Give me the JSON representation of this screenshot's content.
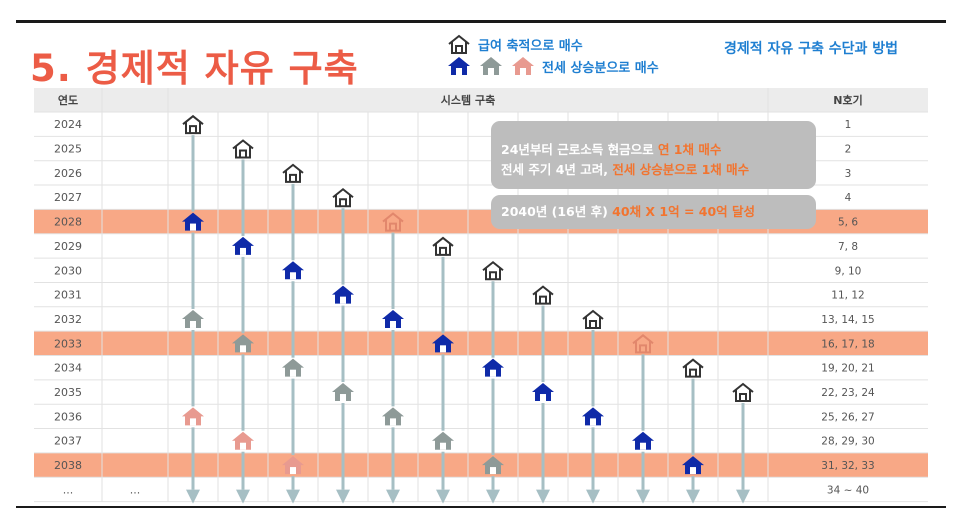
{
  "title": "5. 경제적 자유 구축",
  "top_right_link": "경제적 자유 구축 수단과 방법",
  "legend": {
    "line1": "급여 축적으로 매수",
    "line2": "전세 상승분으로 매수"
  },
  "table": {
    "headers": {
      "year": "연도",
      "blank": "",
      "system": "시스템 구축",
      "n": "N호기"
    },
    "rows": [
      {
        "year": "2024",
        "n": "1",
        "highlight": false
      },
      {
        "year": "2025",
        "n": "2",
        "highlight": false
      },
      {
        "year": "2026",
        "n": "3",
        "highlight": false
      },
      {
        "year": "2027",
        "n": "4",
        "highlight": false
      },
      {
        "year": "2028",
        "n": "5, 6",
        "highlight": true
      },
      {
        "year": "2029",
        "n": "7, 8",
        "highlight": false
      },
      {
        "year": "2030",
        "n": "9, 10",
        "highlight": false
      },
      {
        "year": "2031",
        "n": "11, 12",
        "highlight": false
      },
      {
        "year": "2032",
        "n": "13, 14, 15",
        "highlight": false
      },
      {
        "year": "2033",
        "n": "16, 17, 18",
        "highlight": true
      },
      {
        "year": "2034",
        "n": "19, 20, 21",
        "highlight": false
      },
      {
        "year": "2035",
        "n": "22, 23, 24",
        "highlight": false
      },
      {
        "year": "2036",
        "n": "25, 26, 27",
        "highlight": false
      },
      {
        "year": "2037",
        "n": "28, 29, 30",
        "highlight": false
      },
      {
        "year": "2038",
        "n": "31, 32, 33",
        "highlight": true
      },
      {
        "year": "...",
        "c2": "...",
        "n": "34 ~ 40",
        "highlight": false
      }
    ],
    "houses": [
      {
        "col": 0,
        "row": 0,
        "type": "outline"
      },
      {
        "col": 1,
        "row": 1,
        "type": "outline"
      },
      {
        "col": 2,
        "row": 2,
        "type": "outline"
      },
      {
        "col": 3,
        "row": 3,
        "type": "outline"
      },
      {
        "col": 0,
        "row": 4,
        "type": "blue"
      },
      {
        "col": 4,
        "row": 4,
        "type": "salmon-outline"
      },
      {
        "col": 1,
        "row": 5,
        "type": "blue"
      },
      {
        "col": 5,
        "row": 5,
        "type": "outline"
      },
      {
        "col": 2,
        "row": 6,
        "type": "blue"
      },
      {
        "col": 6,
        "row": 6,
        "type": "outline"
      },
      {
        "col": 3,
        "row": 7,
        "type": "blue"
      },
      {
        "col": 7,
        "row": 7,
        "type": "outline"
      },
      {
        "col": 0,
        "row": 8,
        "type": "gray"
      },
      {
        "col": 4,
        "row": 8,
        "type": "blue"
      },
      {
        "col": 8,
        "row": 8,
        "type": "outline"
      },
      {
        "col": 1,
        "row": 9,
        "type": "gray"
      },
      {
        "col": 5,
        "row": 9,
        "type": "blue"
      },
      {
        "col": 9,
        "row": 9,
        "type": "salmon-outline"
      },
      {
        "col": 2,
        "row": 10,
        "type": "gray"
      },
      {
        "col": 6,
        "row": 10,
        "type": "blue"
      },
      {
        "col": 10,
        "row": 10,
        "type": "outline"
      },
      {
        "col": 3,
        "row": 11,
        "type": "gray"
      },
      {
        "col": 7,
        "row": 11,
        "type": "blue"
      },
      {
        "col": 11,
        "row": 11,
        "type": "outline"
      },
      {
        "col": 0,
        "row": 12,
        "type": "pink"
      },
      {
        "col": 4,
        "row": 12,
        "type": "gray"
      },
      {
        "col": 8,
        "row": 12,
        "type": "blue"
      },
      {
        "col": 1,
        "row": 13,
        "type": "pink"
      },
      {
        "col": 5,
        "row": 13,
        "type": "gray"
      },
      {
        "col": 9,
        "row": 13,
        "type": "blue"
      },
      {
        "col": 2,
        "row": 14,
        "type": "pink"
      },
      {
        "col": 6,
        "row": 14,
        "type": "gray"
      },
      {
        "col": 10,
        "row": 14,
        "type": "blue"
      }
    ]
  },
  "notes": {
    "n1_a": "24년부터 근로소득 현금으로 ",
    "n1_b": "연 1채 매수",
    "n2_a": "전세 주기 4년 고려, ",
    "n2_b": "전세 상승분으로 1채 매수",
    "n3_a": "2040년 (16년 후) ",
    "n3_b": "40채 X 1억 = 40억 달성"
  },
  "colors": {
    "title": "#ec5c46",
    "link": "#1f7fd1",
    "highlight_row": "#f8a886",
    "arrow": "#a6bfc4",
    "house_blue": "#0f2aa8",
    "house_gray": "#8e9a98",
    "house_pink": "#e89a90",
    "house_salmon": "#e2876c"
  }
}
